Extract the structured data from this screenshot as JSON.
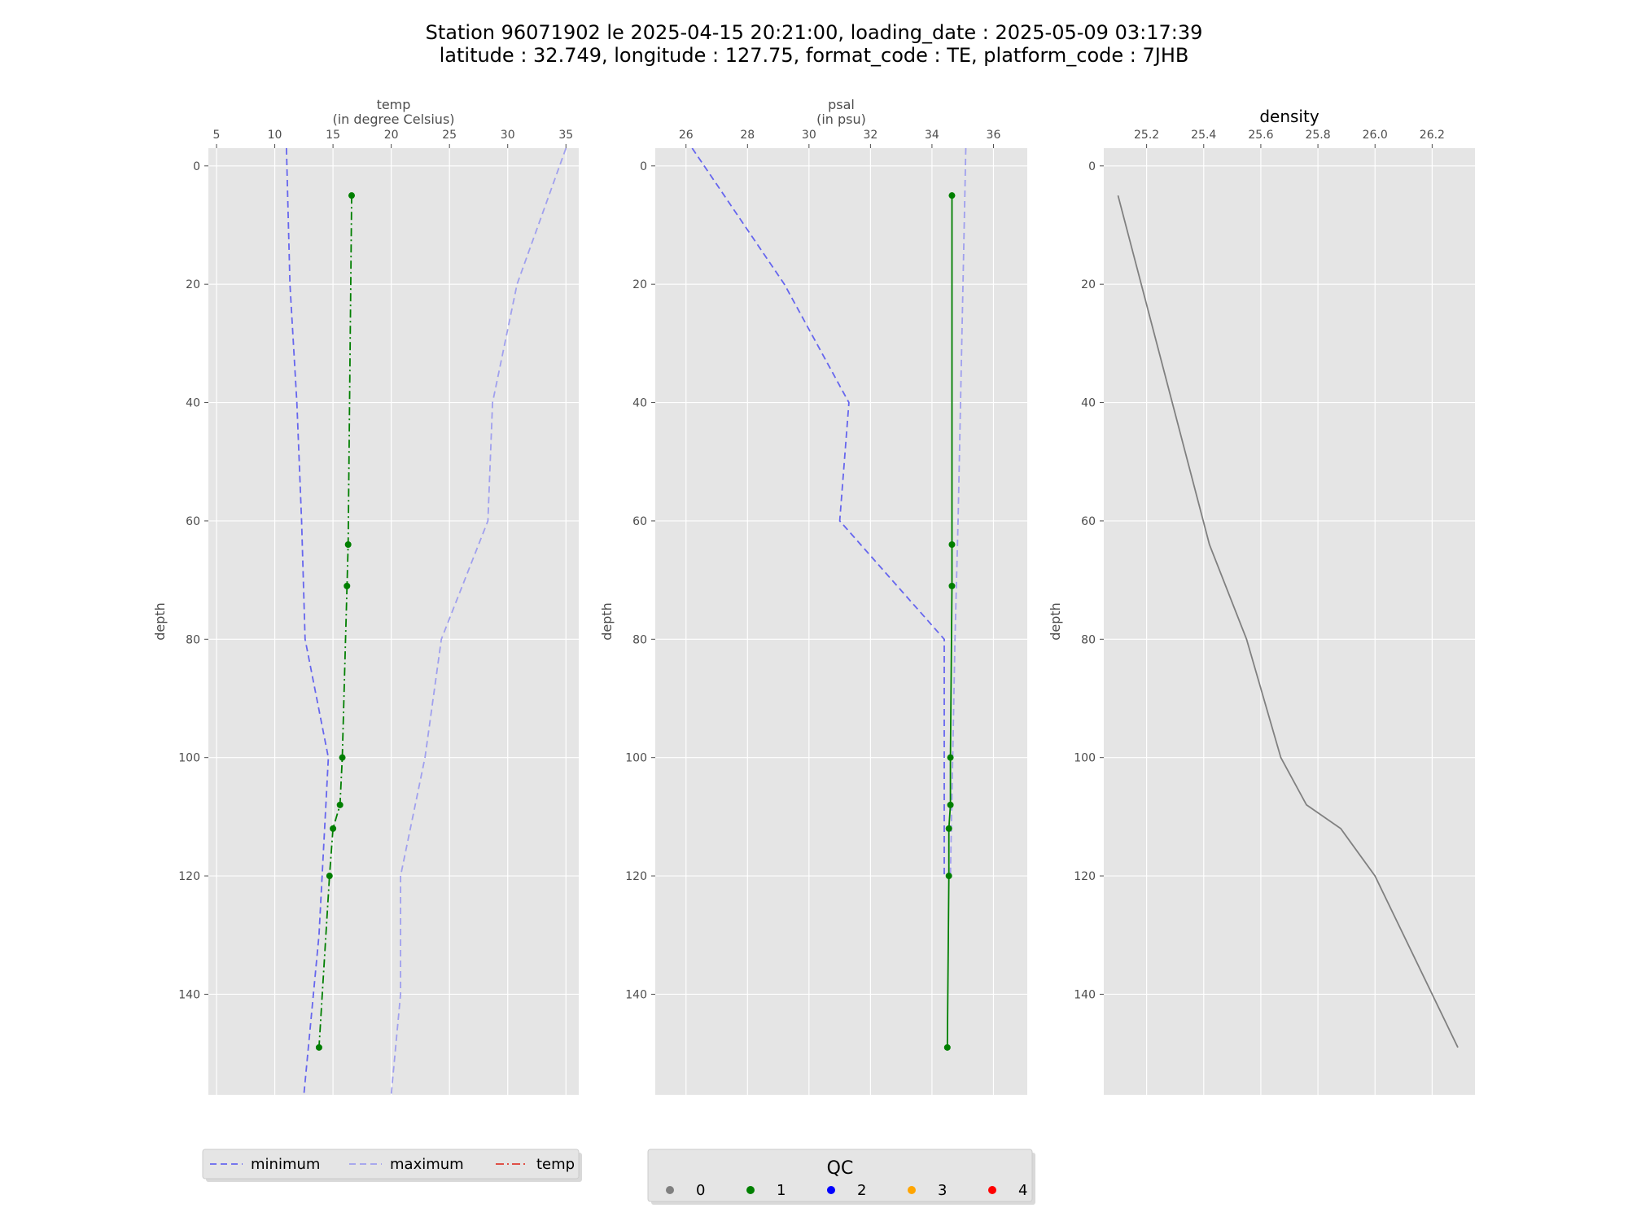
{
  "figure_title": {
    "line1": "Station 96071902 le 2025-04-15 20:21:00, loading_date : 2025-05-09 03:17:39",
    "line2": "latitude : 32.749, longitude : 127.75, format_code : TE, platform_code : 7JHB"
  },
  "colors": {
    "minimum": "#6666ee",
    "maximum": "#a0a0ee",
    "temp_line": "#007f00",
    "density_line": "#808080",
    "plot_bg": "#e5e5e5",
    "grid": "#ffffff",
    "qc": [
      "#808080",
      "#008000",
      "#0000ff",
      "#ffa500",
      "#ff0000"
    ]
  },
  "legend_lines": {
    "items": [
      {
        "label": "minimum",
        "style": "dashed",
        "color": "#6666ee"
      },
      {
        "label": "maximum",
        "style": "dashed",
        "color": "#a0a0ee"
      },
      {
        "label": "temp",
        "style": "dashdot",
        "color": "#e03c31"
      }
    ]
  },
  "legend_qc": {
    "title": "QC",
    "items": [
      {
        "label": "0",
        "color": "#808080"
      },
      {
        "label": "1",
        "color": "#008000"
      },
      {
        "label": "2",
        "color": "#0000ff"
      },
      {
        "label": "3",
        "color": "#ffa500"
      },
      {
        "label": "4",
        "color": "#ff0000"
      }
    ]
  },
  "chart_data": [
    {
      "type": "line",
      "title": "temp\n(in degree Celsius)",
      "ylabel": "depth",
      "xlim": [
        4.3,
        36.1
      ],
      "ylim": [
        157,
        -3
      ],
      "xticks": [
        5,
        10,
        15,
        20,
        25,
        30,
        35
      ],
      "yticks": [
        0,
        20,
        40,
        60,
        80,
        100,
        120,
        140
      ],
      "grid": true,
      "series": [
        {
          "name": "minimum",
          "style": "dashed",
          "color": "#6666ee",
          "x": [
            11.0,
            11.3,
            11.9,
            12.3,
            12.6,
            14.6,
            13.8,
            12.5
          ],
          "y": [
            -3,
            20,
            40,
            60,
            80,
            100,
            130,
            157
          ]
        },
        {
          "name": "maximum",
          "style": "dashed",
          "color": "#a0a0ee",
          "x": [
            35.0,
            30.8,
            28.7,
            28.3,
            24.3,
            22.9,
            20.8,
            20.8,
            20.0
          ],
          "y": [
            -3,
            20,
            40,
            60,
            80,
            100,
            120,
            140,
            157
          ]
        },
        {
          "name": "temp",
          "style": "dashdot",
          "color": "#007f00",
          "markers": true,
          "x": [
            16.6,
            16.3,
            16.2,
            15.8,
            15.6,
            15.0,
            14.7,
            13.8
          ],
          "y": [
            5,
            64,
            71,
            100,
            108,
            112,
            120,
            149
          ]
        }
      ]
    },
    {
      "type": "line",
      "title": "psal\n(in psu)",
      "ylabel": "depth",
      "xlim": [
        25.0,
        37.1
      ],
      "ylim": [
        157,
        -3
      ],
      "xticks": [
        26,
        28,
        30,
        32,
        34,
        36
      ],
      "yticks": [
        0,
        20,
        40,
        60,
        80,
        100,
        120,
        140
      ],
      "grid": true,
      "series": [
        {
          "name": "minimum",
          "style": "dashed",
          "color": "#6666ee",
          "x": [
            26.2,
            29.2,
            31.3,
            31.0,
            34.4,
            34.4
          ],
          "y": [
            -3,
            20,
            40,
            60,
            80,
            120
          ]
        },
        {
          "name": "maximum",
          "style": "dashed",
          "color": "#a0a0ee",
          "x": [
            35.1,
            34.85,
            34.75,
            34.6
          ],
          "y": [
            -3,
            60,
            80,
            120
          ]
        },
        {
          "name": "psal",
          "style": "solid",
          "color": "#007f00",
          "markers": true,
          "x": [
            34.65,
            34.65,
            34.65,
            34.6,
            34.6,
            34.55,
            34.55,
            34.5
          ],
          "y": [
            5,
            64,
            71,
            100,
            108,
            112,
            120,
            149
          ]
        }
      ]
    },
    {
      "type": "line",
      "title": "density",
      "ylabel": "depth",
      "xlim": [
        25.05,
        26.35
      ],
      "ylim": [
        157,
        -3
      ],
      "xticks": [
        25.2,
        25.4,
        25.6,
        25.8,
        26.0,
        26.2
      ],
      "xtick_labels": [
        "25.2",
        "25.4",
        "25.6",
        "25.8",
        "26.0",
        "26.2"
      ],
      "yticks": [
        0,
        20,
        40,
        60,
        80,
        100,
        120,
        140
      ],
      "grid": true,
      "series": [
        {
          "style": "solid",
          "color": "#808080",
          "x": [
            25.1,
            25.42,
            25.55,
            25.67,
            25.76,
            25.88,
            26.0,
            26.29
          ],
          "y": [
            5,
            64,
            80,
            100,
            108,
            112,
            120,
            149
          ]
        }
      ]
    }
  ]
}
